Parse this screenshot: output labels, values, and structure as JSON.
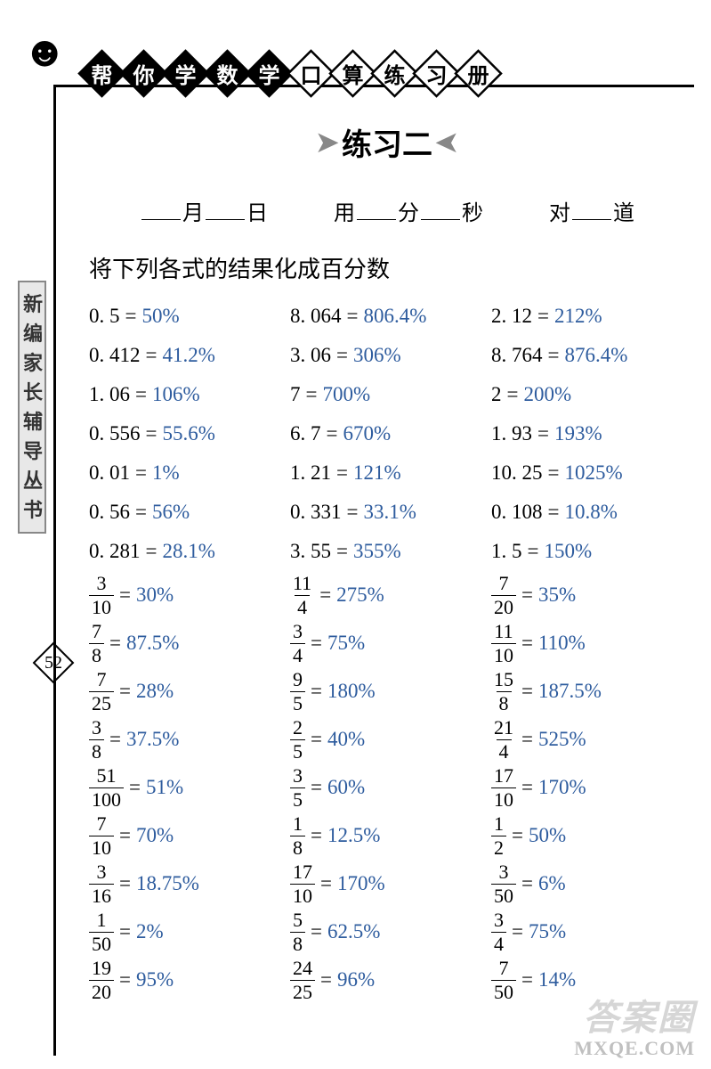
{
  "header": {
    "diamonds": [
      {
        "char": "帮",
        "filled": true
      },
      {
        "char": "你",
        "filled": true
      },
      {
        "char": "学",
        "filled": true
      },
      {
        "char": "数",
        "filled": true
      },
      {
        "char": "学",
        "filled": true
      },
      {
        "char": "口",
        "filled": false
      },
      {
        "char": "算",
        "filled": false
      },
      {
        "char": "练",
        "filled": false
      },
      {
        "char": "习",
        "filled": false
      },
      {
        "char": "册",
        "filled": false
      }
    ]
  },
  "sidebar_label": "新编家长辅导丛书",
  "page_number": "52",
  "title": "练习二",
  "date_row": {
    "month": "月",
    "day": "日",
    "use": "用",
    "min": "分",
    "sec": "秒",
    "correct": "对",
    "items": "道"
  },
  "instruction": "将下列各式的结果化成百分数",
  "columns": [
    [
      {
        "lhs": "0. 5",
        "ans": "50%"
      },
      {
        "lhs": "0. 412",
        "ans": "41.2%"
      },
      {
        "lhs": "1. 06",
        "ans": "106%"
      },
      {
        "lhs": "0. 556",
        "ans": "55.6%"
      },
      {
        "lhs": "0. 01",
        "ans": "1%"
      },
      {
        "lhs": "0. 56",
        "ans": "56%"
      },
      {
        "lhs": "0. 281",
        "ans": "28.1%"
      },
      {
        "frac": [
          "3",
          "10"
        ],
        "ans": "30%"
      },
      {
        "frac": [
          "7",
          "8"
        ],
        "ans": "87.5%"
      },
      {
        "frac": [
          "7",
          "25"
        ],
        "ans": "28%"
      },
      {
        "frac": [
          "3",
          "8"
        ],
        "ans": "37.5%"
      },
      {
        "frac": [
          "51",
          "100"
        ],
        "ans": "51%"
      },
      {
        "frac": [
          "7",
          "10"
        ],
        "ans": "70%"
      },
      {
        "frac": [
          "3",
          "16"
        ],
        "ans": "18.75%"
      },
      {
        "frac": [
          "1",
          "50"
        ],
        "ans": "2%"
      },
      {
        "frac": [
          "19",
          "20"
        ],
        "ans": "95%"
      }
    ],
    [
      {
        "lhs": "8. 064",
        "ans": "806.4%"
      },
      {
        "lhs": "3. 06",
        "ans": "306%"
      },
      {
        "lhs": "7",
        "ans": "700%"
      },
      {
        "lhs": "6. 7",
        "ans": "670%"
      },
      {
        "lhs": "1. 21",
        "ans": "121%"
      },
      {
        "lhs": "0. 331",
        "ans": "33.1%"
      },
      {
        "lhs": "3. 55",
        "ans": "355%"
      },
      {
        "frac": [
          "11",
          "4"
        ],
        "ans": "275%"
      },
      {
        "frac": [
          "3",
          "4"
        ],
        "ans": "75%"
      },
      {
        "frac": [
          "9",
          "5"
        ],
        "ans": "180%"
      },
      {
        "frac": [
          "2",
          "5"
        ],
        "ans": "40%"
      },
      {
        "frac": [
          "3",
          "5"
        ],
        "ans": "60%"
      },
      {
        "frac": [
          "1",
          "8"
        ],
        "ans": "12.5%"
      },
      {
        "frac": [
          "17",
          "10"
        ],
        "ans": "170%"
      },
      {
        "frac": [
          "5",
          "8"
        ],
        "ans": "62.5%"
      },
      {
        "frac": [
          "24",
          "25"
        ],
        "ans": "96%"
      }
    ],
    [
      {
        "lhs": "2. 12",
        "ans": "212%"
      },
      {
        "lhs": "8. 764",
        "ans": "876.4%"
      },
      {
        "lhs": "2",
        "ans": "200%"
      },
      {
        "lhs": "1. 93",
        "ans": "193%"
      },
      {
        "lhs": "10. 25",
        "ans": "1025%"
      },
      {
        "lhs": "0. 108",
        "ans": "10.8%"
      },
      {
        "lhs": "1. 5",
        "ans": "150%"
      },
      {
        "frac": [
          "7",
          "20"
        ],
        "ans": "35%"
      },
      {
        "frac": [
          "11",
          "10"
        ],
        "ans": "110%"
      },
      {
        "frac": [
          "15",
          "8"
        ],
        "ans": "187.5%"
      },
      {
        "frac": [
          "21",
          "4"
        ],
        "ans": "525%"
      },
      {
        "frac": [
          "17",
          "10"
        ],
        "ans": "170%"
      },
      {
        "frac": [
          "1",
          "2"
        ],
        "ans": "50%"
      },
      {
        "frac": [
          "3",
          "50"
        ],
        "ans": "6%"
      },
      {
        "frac": [
          "3",
          "4"
        ],
        "ans": "75%"
      },
      {
        "frac": [
          "7",
          "50"
        ],
        "ans": "14%"
      }
    ]
  ],
  "watermark1": "答案圈",
  "watermark2": "MXQE.COM",
  "colors": {
    "answer": "#2e5c9e",
    "text": "#000000",
    "background": "#ffffff"
  }
}
